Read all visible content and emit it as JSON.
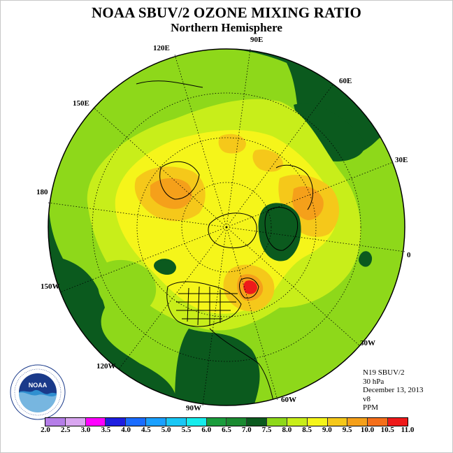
{
  "title": "NOAA SBUV/2 OZONE MIXING RATIO",
  "subtitle": "Northern Hemisphere",
  "longitude_labels": {
    "lon_90e": "90E",
    "lon_60e": "60E",
    "lon_120e": "120E",
    "lon_150e": "150E",
    "lon_30e": "30E",
    "lon_180": "180",
    "lon_0": "0",
    "lon_150w": "150W",
    "lon_30w": "30W",
    "lon_120w": "120W",
    "lon_60w": "60W",
    "lon_90w": "90W"
  },
  "info": {
    "satellite": "N19 SBUV/2",
    "level": "30 hPa",
    "date": "December 13, 2013",
    "version": "v8",
    "units": "PPM"
  },
  "colorbar": {
    "ticks": [
      "2.0",
      "2.5",
      "3.0",
      "3.5",
      "4.0",
      "4.5",
      "5.0",
      "5.5",
      "6.0",
      "6.5",
      "7.0",
      "7.5",
      "8.0",
      "8.5",
      "9.0",
      "9.5",
      "10.0",
      "10.5",
      "11.0"
    ],
    "colors": [
      "#b57ee8",
      "#d9a6f0",
      "#ff00ff",
      "#1e1ee0",
      "#1a6cff",
      "#1aa0ff",
      "#19c7f5",
      "#16ecec",
      "#1a9c3c",
      "#1a8a30",
      "#0b5a1e",
      "#8ed81a",
      "#c8ee1a",
      "#f5f51a",
      "#f5c81a",
      "#f5a01a",
      "#f56f1a",
      "#ee1a1a",
      "#8a4a2a"
    ]
  },
  "field_colors": {
    "dark_green": "#0b5a1e",
    "light_green": "#8ed81a",
    "yellow_green": "#c8ee1a",
    "yellow": "#f5f51a",
    "gold": "#f5c81a",
    "orange": "#f5a01a",
    "red": "#ee1a1a"
  },
  "logo": {
    "text": "NOAA",
    "ring_text": "NATIONAL OCEANIC AND ATMOSPHERIC ADMINISTRATION · U.S. DEPARTMENT OF COMMERCE"
  }
}
